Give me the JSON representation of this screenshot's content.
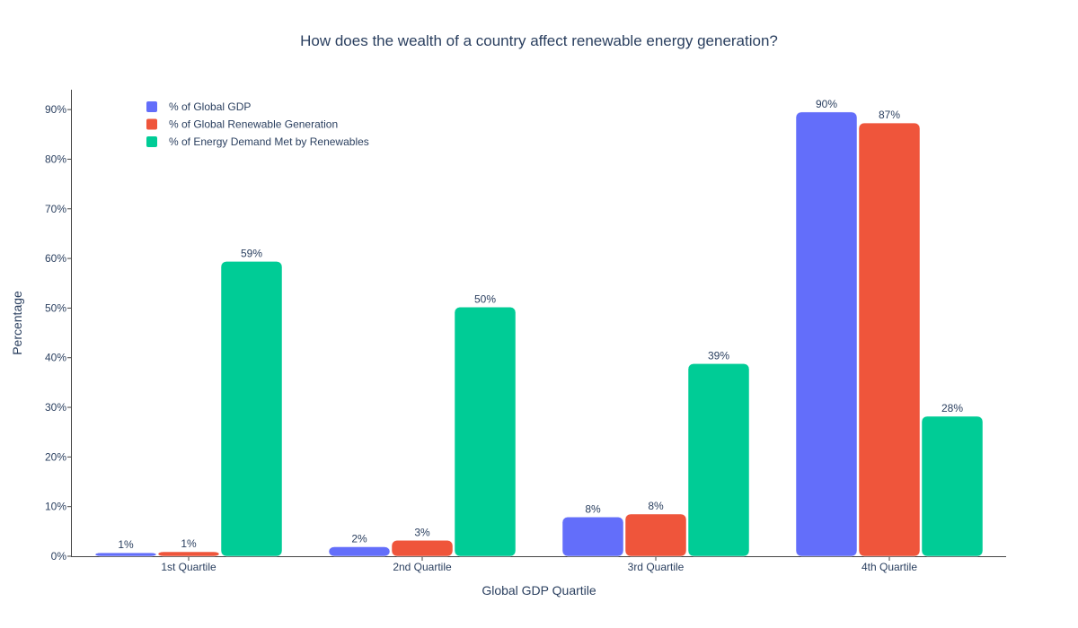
{
  "chart_data": {
    "type": "bar",
    "title": "How does the wealth of a country affect renewable energy generation?",
    "xlabel": "Global GDP Quartile",
    "ylabel": "Percentage",
    "categories": [
      "1st Quartile",
      "2nd Quartile",
      "3rd Quartile",
      "4th Quartile"
    ],
    "series": [
      {
        "name": "% of Global GDP",
        "color": "#636efa",
        "values": [
          0.7,
          1.9,
          7.9,
          89.5
        ],
        "labels": [
          "1%",
          "2%",
          "8%",
          "90%"
        ]
      },
      {
        "name": "% of Global Renewable Generation",
        "color": "#ef553b",
        "values": [
          0.9,
          3.2,
          8.5,
          87.3
        ],
        "labels": [
          "1%",
          "3%",
          "8%",
          "87%"
        ]
      },
      {
        "name": "% of Energy Demand Met by Renewables",
        "color": "#00cc96",
        "values": [
          59.4,
          50.2,
          38.8,
          28.2
        ],
        "labels": [
          "59%",
          "50%",
          "39%",
          "28%"
        ]
      }
    ],
    "ylim": [
      0,
      94
    ],
    "yticks": [
      0,
      10,
      20,
      30,
      40,
      50,
      60,
      70,
      80,
      90
    ],
    "ytick_labels": [
      "0%",
      "10%",
      "20%",
      "30%",
      "40%",
      "50%",
      "60%",
      "70%",
      "80%",
      "90%"
    ],
    "grid": false,
    "legend_position": "top-left"
  }
}
